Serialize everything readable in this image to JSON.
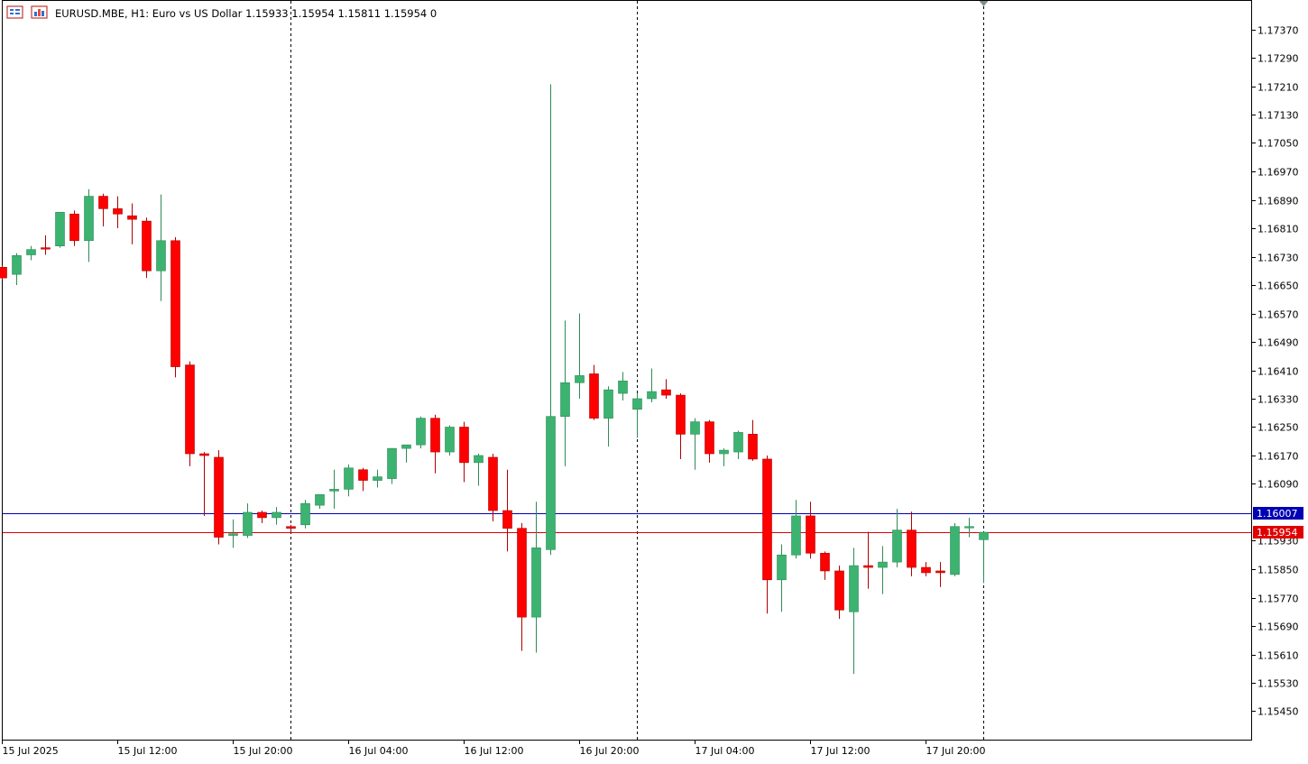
{
  "header": {
    "symbol": "EURUSD.MBE",
    "timeframe": "H1:",
    "description": "Euro vs US Dollar",
    "ohlc": "1.15933 1.15954 1.15811 1.15954",
    "volume": "0"
  },
  "colors": {
    "bull": "#3cb371",
    "bear": "#ff0000",
    "wick_bull": "#2e8b57",
    "wick_bear": "#b00000",
    "bid_line": "#0000b4",
    "ask_line": "#e00000",
    "grid_separator": "#000000",
    "axis": "#000000"
  },
  "price_labels": {
    "bid": "1.16007",
    "last": "1.15954"
  },
  "chart_data": {
    "type": "candlestick",
    "symbol": "EURUSD.MBE",
    "timeframe": "H1",
    "ylim": [
      1.1537,
      1.1745
    ],
    "y_ticks": [
      "1.17370",
      "1.17290",
      "1.17210",
      "1.17130",
      "1.17050",
      "1.16970",
      "1.16890",
      "1.16810",
      "1.16730",
      "1.16650",
      "1.16570",
      "1.16490",
      "1.16410",
      "1.16330",
      "1.16250",
      "1.16170",
      "1.16090",
      "1.15930",
      "1.15850",
      "1.15770",
      "1.15690",
      "1.15610",
      "1.15530",
      "1.15450"
    ],
    "x_ticks": [
      {
        "label": "15 Jul 2025",
        "index": 0
      },
      {
        "label": "15 Jul 12:00",
        "index": 8
      },
      {
        "label": "15 Jul 20:00",
        "index": 16
      },
      {
        "label": "16 Jul 04:00",
        "index": 24
      },
      {
        "label": "16 Jul 12:00",
        "index": 32
      },
      {
        "label": "16 Jul 20:00",
        "index": 40
      },
      {
        "label": "17 Jul 04:00",
        "index": 48
      },
      {
        "label": "17 Jul 12:00",
        "index": 56
      },
      {
        "label": "17 Jul 20:00",
        "index": 64
      }
    ],
    "day_separators": [
      20,
      44,
      68
    ],
    "horizontal_lines": [
      {
        "name": "bid",
        "value": 1.16007
      },
      {
        "name": "last",
        "value": 1.15954
      }
    ],
    "candles": [
      {
        "o": 1.167,
        "h": 1.16705,
        "l": 1.16665,
        "c": 1.1667
      },
      {
        "o": 1.1668,
        "h": 1.1674,
        "l": 1.1665,
        "c": 1.16733
      },
      {
        "o": 1.16735,
        "h": 1.1676,
        "l": 1.1672,
        "c": 1.1675
      },
      {
        "o": 1.16755,
        "h": 1.1679,
        "l": 1.16735,
        "c": 1.16753
      },
      {
        "o": 1.1676,
        "h": 1.16855,
        "l": 1.16755,
        "c": 1.16855
      },
      {
        "o": 1.1685,
        "h": 1.1686,
        "l": 1.1676,
        "c": 1.16775
      },
      {
        "o": 1.16775,
        "h": 1.1692,
        "l": 1.16715,
        "c": 1.169
      },
      {
        "o": 1.169,
        "h": 1.16907,
        "l": 1.16815,
        "c": 1.16865
      },
      {
        "o": 1.16865,
        "h": 1.169,
        "l": 1.1681,
        "c": 1.1685
      },
      {
        "o": 1.16845,
        "h": 1.1688,
        "l": 1.16765,
        "c": 1.16835
      },
      {
        "o": 1.1683,
        "h": 1.1684,
        "l": 1.1667,
        "c": 1.1669
      },
      {
        "o": 1.1669,
        "h": 1.16905,
        "l": 1.16605,
        "c": 1.16775
      },
      {
        "o": 1.16775,
        "h": 1.16785,
        "l": 1.1639,
        "c": 1.1642
      },
      {
        "o": 1.16425,
        "h": 1.16435,
        "l": 1.1614,
        "c": 1.16175
      },
      {
        "o": 1.16175,
        "h": 1.1618,
        "l": 1.16,
        "c": 1.1617
      },
      {
        "o": 1.16165,
        "h": 1.16185,
        "l": 1.1592,
        "c": 1.1594
      },
      {
        "o": 1.15945,
        "h": 1.1599,
        "l": 1.1591,
        "c": 1.1595
      },
      {
        "o": 1.15945,
        "h": 1.16035,
        "l": 1.15938,
        "c": 1.1601
      },
      {
        "o": 1.1601,
        "h": 1.16015,
        "l": 1.1598,
        "c": 1.15995
      },
      {
        "o": 1.15995,
        "h": 1.16025,
        "l": 1.15975,
        "c": 1.1601
      },
      {
        "o": 1.1597,
        "h": 1.15975,
        "l": 1.15955,
        "c": 1.15965
      },
      {
        "o": 1.15975,
        "h": 1.16045,
        "l": 1.15965,
        "c": 1.16035
      },
      {
        "o": 1.1603,
        "h": 1.1606,
        "l": 1.1602,
        "c": 1.1606
      },
      {
        "o": 1.1607,
        "h": 1.1613,
        "l": 1.1602,
        "c": 1.16075
      },
      {
        "o": 1.16075,
        "h": 1.16145,
        "l": 1.16055,
        "c": 1.16135
      },
      {
        "o": 1.1613,
        "h": 1.16135,
        "l": 1.1607,
        "c": 1.161
      },
      {
        "o": 1.161,
        "h": 1.1613,
        "l": 1.1608,
        "c": 1.1611
      },
      {
        "o": 1.16105,
        "h": 1.1619,
        "l": 1.1609,
        "c": 1.1619
      },
      {
        "o": 1.1619,
        "h": 1.162,
        "l": 1.1615,
        "c": 1.162
      },
      {
        "o": 1.162,
        "h": 1.1628,
        "l": 1.1619,
        "c": 1.16275
      },
      {
        "o": 1.16275,
        "h": 1.16285,
        "l": 1.1612,
        "c": 1.1618
      },
      {
        "o": 1.1618,
        "h": 1.16255,
        "l": 1.1617,
        "c": 1.1625
      },
      {
        "o": 1.1625,
        "h": 1.16265,
        "l": 1.16095,
        "c": 1.1615
      },
      {
        "o": 1.1615,
        "h": 1.16175,
        "l": 1.16085,
        "c": 1.1617
      },
      {
        "o": 1.16165,
        "h": 1.16175,
        "l": 1.15985,
        "c": 1.16015
      },
      {
        "o": 1.16015,
        "h": 1.1613,
        "l": 1.159,
        "c": 1.15965
      },
      {
        "o": 1.15965,
        "h": 1.1598,
        "l": 1.1562,
        "c": 1.15715
      },
      {
        "o": 1.15715,
        "h": 1.1604,
        "l": 1.15615,
        "c": 1.1591
      },
      {
        "o": 1.15905,
        "h": 1.17215,
        "l": 1.1589,
        "c": 1.1628
      },
      {
        "o": 1.1628,
        "h": 1.1655,
        "l": 1.1614,
        "c": 1.16375
      },
      {
        "o": 1.16375,
        "h": 1.1657,
        "l": 1.1633,
        "c": 1.16395
      },
      {
        "o": 1.164,
        "h": 1.16425,
        "l": 1.1627,
        "c": 1.16275
      },
      {
        "o": 1.16275,
        "h": 1.16365,
        "l": 1.16195,
        "c": 1.16355
      },
      {
        "o": 1.16345,
        "h": 1.16405,
        "l": 1.16325,
        "c": 1.1638
      },
      {
        "o": 1.163,
        "h": 1.16345,
        "l": 1.1622,
        "c": 1.1633
      },
      {
        "o": 1.1633,
        "h": 1.16415,
        "l": 1.1632,
        "c": 1.1635
      },
      {
        "o": 1.16355,
        "h": 1.16385,
        "l": 1.1633,
        "c": 1.1634
      },
      {
        "o": 1.1634,
        "h": 1.16345,
        "l": 1.1616,
        "c": 1.1623
      },
      {
        "o": 1.1623,
        "h": 1.16275,
        "l": 1.1613,
        "c": 1.16265
      },
      {
        "o": 1.16265,
        "h": 1.1627,
        "l": 1.1615,
        "c": 1.16175
      },
      {
        "o": 1.16175,
        "h": 1.1619,
        "l": 1.1614,
        "c": 1.16185
      },
      {
        "o": 1.1618,
        "h": 1.1624,
        "l": 1.1616,
        "c": 1.16235
      },
      {
        "o": 1.1623,
        "h": 1.1627,
        "l": 1.16155,
        "c": 1.1616
      },
      {
        "o": 1.1616,
        "h": 1.1617,
        "l": 1.15725,
        "c": 1.1582
      },
      {
        "o": 1.1582,
        "h": 1.1592,
        "l": 1.1573,
        "c": 1.1589
      },
      {
        "o": 1.1589,
        "h": 1.16045,
        "l": 1.1588,
        "c": 1.16
      },
      {
        "o": 1.16,
        "h": 1.1604,
        "l": 1.1588,
        "c": 1.15895
      },
      {
        "o": 1.15895,
        "h": 1.159,
        "l": 1.1582,
        "c": 1.15845
      },
      {
        "o": 1.15845,
        "h": 1.1586,
        "l": 1.1571,
        "c": 1.15735
      },
      {
        "o": 1.1573,
        "h": 1.1591,
        "l": 1.15555,
        "c": 1.1586
      },
      {
        "o": 1.1586,
        "h": 1.15955,
        "l": 1.15795,
        "c": 1.15855
      },
      {
        "o": 1.15855,
        "h": 1.15915,
        "l": 1.1578,
        "c": 1.1587
      },
      {
        "o": 1.1587,
        "h": 1.1602,
        "l": 1.15855,
        "c": 1.1596
      },
      {
        "o": 1.1596,
        "h": 1.16012,
        "l": 1.1583,
        "c": 1.15855
      },
      {
        "o": 1.15855,
        "h": 1.1587,
        "l": 1.1583,
        "c": 1.1584
      },
      {
        "o": 1.15845,
        "h": 1.1587,
        "l": 1.158,
        "c": 1.1584
      },
      {
        "o": 1.15835,
        "h": 1.1598,
        "l": 1.1583,
        "c": 1.1597
      },
      {
        "o": 1.1597,
        "h": 1.15995,
        "l": 1.1594,
        "c": 1.1597
      },
      {
        "o": 1.15933,
        "h": 1.15954,
        "l": 1.15811,
        "c": 1.15954
      }
    ]
  }
}
